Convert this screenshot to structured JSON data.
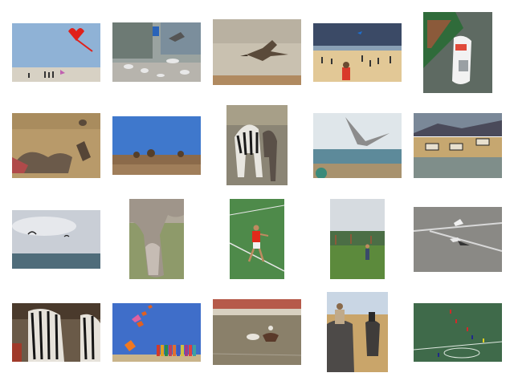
{
  "grid": {
    "rows": 4,
    "columns": 5,
    "thumbnails": [
      {
        "id": "kites-beach-heart"
      },
      {
        "id": "pigeons-street"
      },
      {
        "id": "seagull-flying-sand"
      },
      {
        "id": "crowded-beach-kite"
      },
      {
        "id": "boats-harbor"
      },
      {
        "id": "vultures-carcass"
      },
      {
        "id": "open-field-sky"
      },
      {
        "id": "two-zebras"
      },
      {
        "id": "seagull-over-shore"
      },
      {
        "id": "zebras-by-water"
      },
      {
        "id": "kitesurf-sea"
      },
      {
        "id": "elephant-trunk"
      },
      {
        "id": "tennis-player"
      },
      {
        "id": "park-kites"
      },
      {
        "id": "birds-on-road"
      },
      {
        "id": "zebras-closeup"
      },
      {
        "id": "kite-train-blue-sky"
      },
      {
        "id": "polo-race"
      },
      {
        "id": "elephant-riders"
      },
      {
        "id": "soccer-field"
      }
    ]
  }
}
